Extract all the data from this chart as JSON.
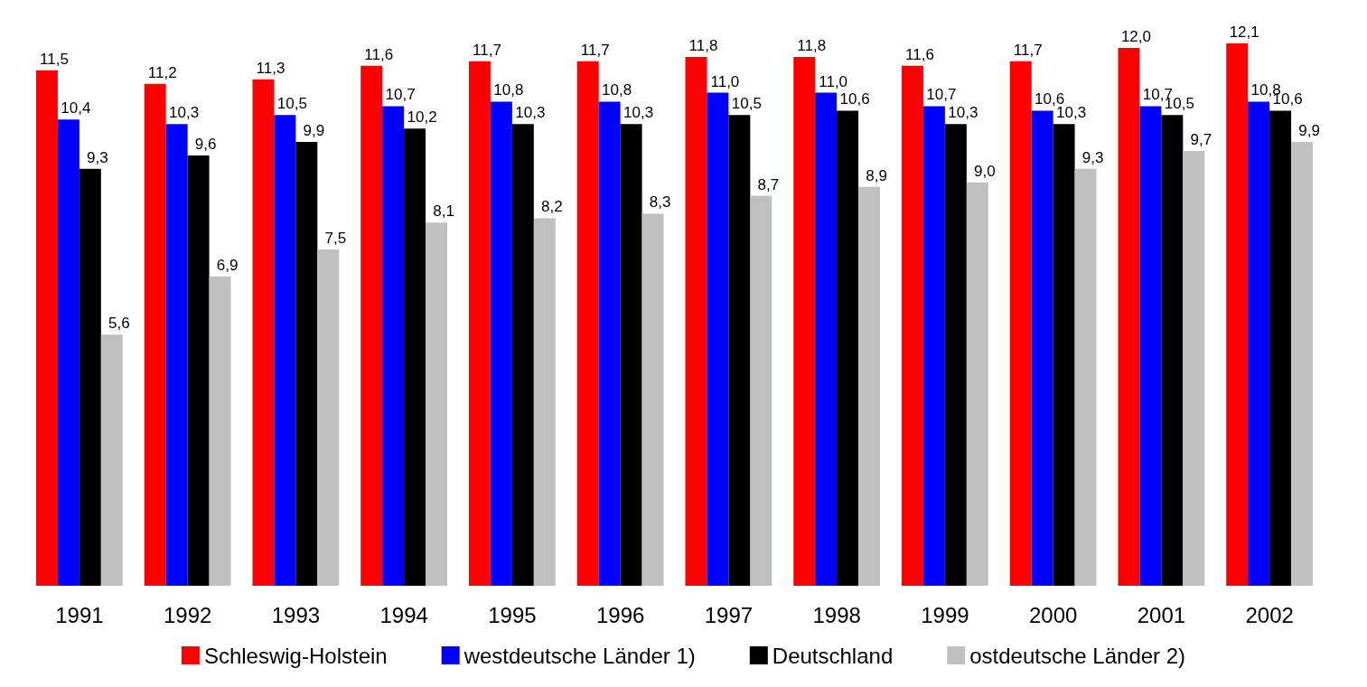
{
  "chart_data": {
    "type": "bar",
    "categories": [
      "1991",
      "1992",
      "1993",
      "1994",
      "1995",
      "1996",
      "1997",
      "1998",
      "1999",
      "2000",
      "2001",
      "2002"
    ],
    "series": [
      {
        "name": "Schleswig-Holstein",
        "color": "#ff0000",
        "values": [
          11.5,
          11.2,
          11.3,
          11.6,
          11.7,
          11.7,
          11.8,
          11.8,
          11.6,
          11.7,
          12.0,
          12.1
        ],
        "value_labels": [
          "11,5",
          "11,2",
          "11,3",
          "11,6",
          "11,7",
          "11,7",
          "11,8",
          "11,8",
          "11,6",
          "11,7",
          "12,0",
          "12,1"
        ]
      },
      {
        "name": "westdeutsche Länder 1)",
        "color": "#0000ff",
        "values": [
          10.4,
          10.3,
          10.5,
          10.7,
          10.8,
          10.8,
          11.0,
          11.0,
          10.7,
          10.6,
          10.7,
          10.8
        ],
        "value_labels": [
          "10,4",
          "10,3",
          "10,5",
          "10,7",
          "10,8",
          "10,8",
          "11,0",
          "11,0",
          "10,7",
          "10,6",
          "10,7",
          "10,8"
        ]
      },
      {
        "name": "Deutschland",
        "color": "#000000",
        "values": [
          9.3,
          9.6,
          9.9,
          10.2,
          10.3,
          10.3,
          10.5,
          10.6,
          10.3,
          10.3,
          10.5,
          10.6
        ],
        "value_labels": [
          "9,3",
          "9,6",
          "9,9",
          "10,2",
          "10,3",
          "10,3",
          "10,5",
          "10,6",
          "10,3",
          "10,3",
          "10,5",
          "10,6"
        ]
      },
      {
        "name": "ostdeutsche Länder 2)",
        "color": "#c0c0c0",
        "values": [
          5.6,
          6.9,
          7.5,
          8.1,
          8.2,
          8.3,
          8.7,
          8.9,
          9.0,
          9.3,
          9.7,
          9.9
        ],
        "value_labels": [
          "5,6",
          "6,9",
          "7,5",
          "8,1",
          "8,2",
          "8,3",
          "8,7",
          "8,9",
          "9,0",
          "9,3",
          "9,7",
          "9,9"
        ]
      }
    ],
    "legend": "bottom",
    "grid": false
  }
}
